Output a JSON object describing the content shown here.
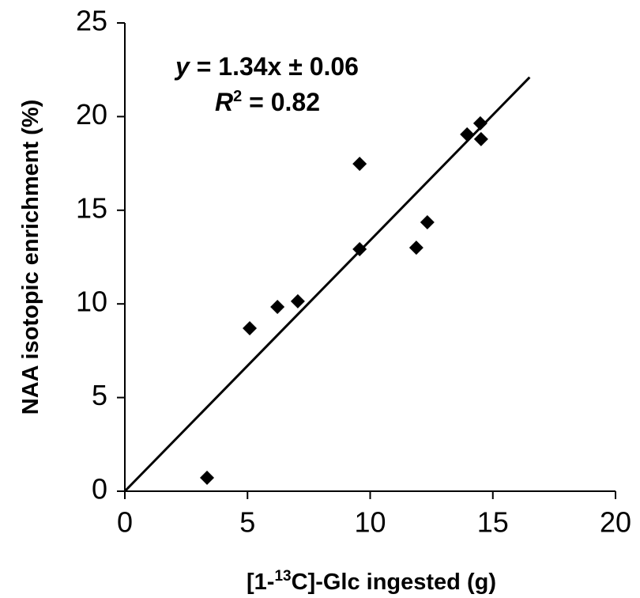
{
  "chart_data": {
    "type": "scatter",
    "x": [
      3.35,
      5.09,
      6.22,
      7.05,
      9.57,
      9.57,
      11.88,
      12.33,
      13.95,
      14.49,
      14.52
    ],
    "values": [
      0.72,
      8.7,
      9.84,
      10.14,
      17.48,
      12.92,
      13.0,
      14.36,
      19.05,
      19.64,
      18.8
    ],
    "color": "#000000",
    "xlim": [
      0,
      20
    ],
    "xticks": [
      0,
      5,
      10,
      15,
      20
    ],
    "ylim": [
      0,
      25
    ],
    "yticks": [
      0,
      5,
      10,
      15,
      20,
      25
    ],
    "x_label": {
      "text": "[1-",
      "sup": "13",
      "rest": "C]-Glc ingested (g)"
    },
    "y_label": "NAA isotopic enrichment (%)",
    "fit_line": {
      "x": [
        0,
        16.5
      ],
      "y": [
        0,
        22.1
      ]
    },
    "annotations": [
      {
        "italic": "y",
        "text": " = 1.34x ± 0.06"
      },
      {
        "italic": "R",
        "sup": "2",
        "text": " = 0.82"
      }
    ]
  }
}
